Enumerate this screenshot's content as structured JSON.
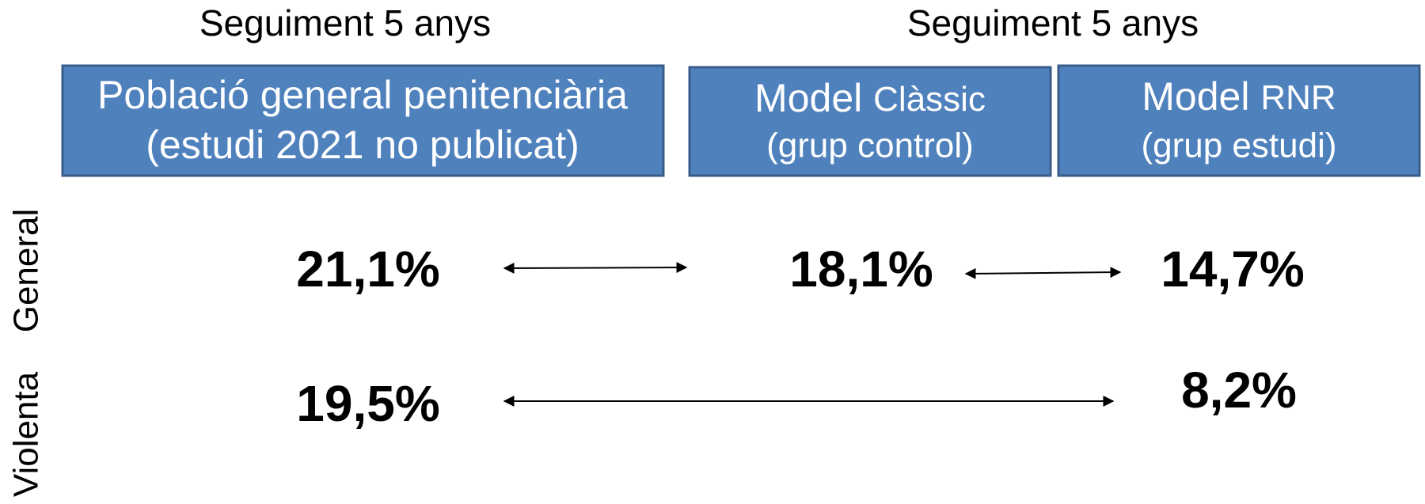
{
  "headers": [
    "Seguiment 5 anys",
    "Seguiment 5 anys"
  ],
  "boxes": [
    {
      "line1": "Població general penitenciària",
      "line2": "(estudi 2021 no publicat)"
    },
    {
      "line1": "Model",
      "line1_small": "Clàssic",
      "line2": "(grup control)"
    },
    {
      "line1": "Model",
      "line1_small": "RNR",
      "line2": "(grup estudi)"
    }
  ],
  "rows": [
    {
      "label": "General",
      "values": [
        "21,1%",
        "18,1%",
        "14,7%"
      ]
    },
    {
      "label": "Violenta",
      "values": [
        "19,5%",
        "8,2%"
      ]
    }
  ]
}
